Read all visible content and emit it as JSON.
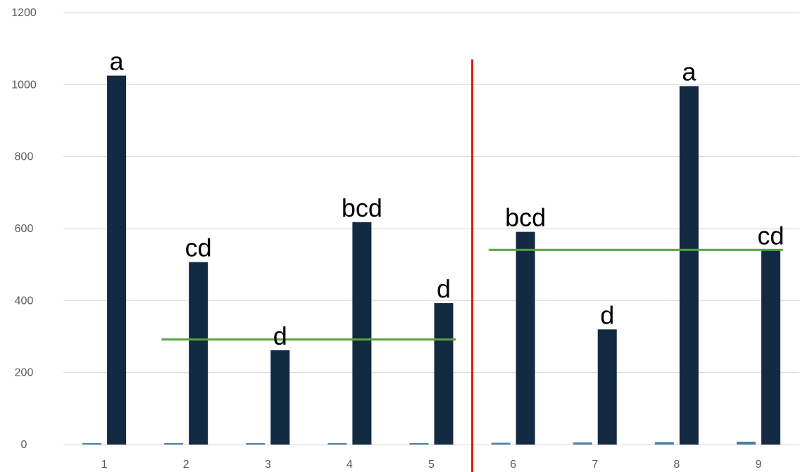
{
  "chart_data": {
    "type": "bar",
    "title": "",
    "xlabel": "",
    "ylabel": "",
    "ylim": [
      0,
      1200
    ],
    "y_ticks": [
      0,
      200,
      400,
      600,
      800,
      1000,
      1200
    ],
    "grid": true,
    "categories": [
      "1",
      "2",
      "3",
      "4",
      "5",
      "6",
      "7",
      "8",
      "9"
    ],
    "series": [
      {
        "values": [
          0,
          1,
          2,
          3,
          4,
          5,
          6,
          7,
          8
        ],
        "color": "#4a7fa5"
      },
      {
        "values": [
          1025,
          507,
          262,
          618,
          393,
          591,
          320,
          996,
          540
        ],
        "color": "#132a43"
      }
    ],
    "annotations": [
      "a",
      "cd",
      "d",
      "bcd",
      "d",
      "bcd",
      "d",
      "a",
      "cd"
    ],
    "reference_lines": [
      {
        "value": 292,
        "from_category": "2",
        "to_category": "5",
        "color": "#5aa33c"
      },
      {
        "value": 541,
        "from_category": "6",
        "to_category": "9",
        "color": "#5aa33c"
      }
    ],
    "divider": {
      "after_category": "5",
      "color": "#e8141b"
    }
  }
}
